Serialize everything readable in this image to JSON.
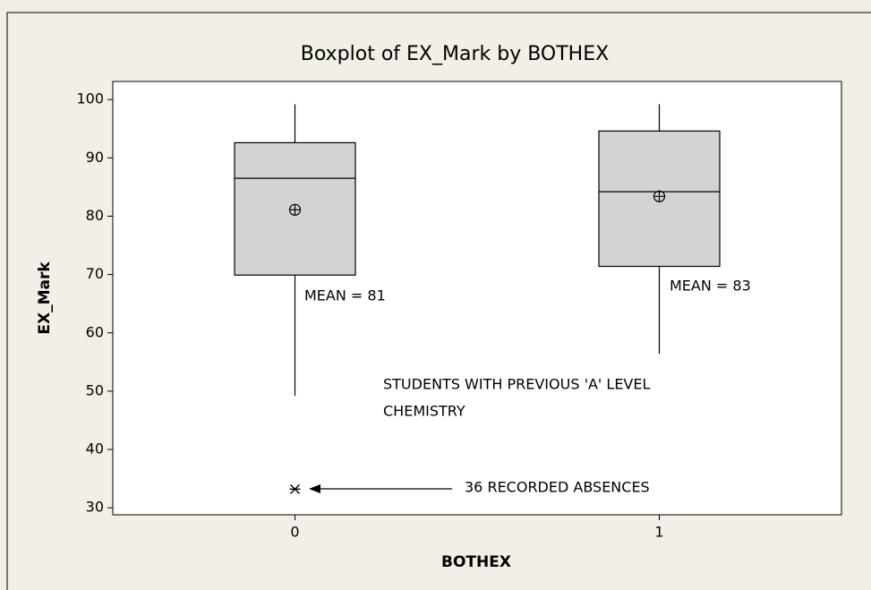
{
  "chart_data": {
    "type": "box",
    "title": "Boxplot of EX_Mark by BOTHEX",
    "xlabel": "BOTHEX",
    "ylabel": "EX_Mark",
    "categories": [
      "0",
      "1"
    ],
    "boxes": [
      {
        "whisker_low": 49.2,
        "q1": 69.9,
        "median": 86.5,
        "q3": 92.6,
        "whisker_high": 99.2,
        "mean": 81.1,
        "outliers": [
          33.2
        ]
      },
      {
        "whisker_low": 56.4,
        "q1": 71.4,
        "median": 84.2,
        "q3": 94.6,
        "whisker_high": 99.2,
        "mean": 83.4,
        "outliers": []
      }
    ],
    "color": "#d3d3d3",
    "ylim": [
      28.8,
      103.1
    ],
    "yticks": [
      30,
      40,
      50,
      60,
      70,
      80,
      90,
      100
    ],
    "annotations": [
      "MEAN = 81",
      "MEAN = 83",
      "STUDENTS WITH PREVIOUS 'A' LEVEL",
      "CHEMISTRY",
      "36 RECORDED ABSENCES"
    ]
  }
}
